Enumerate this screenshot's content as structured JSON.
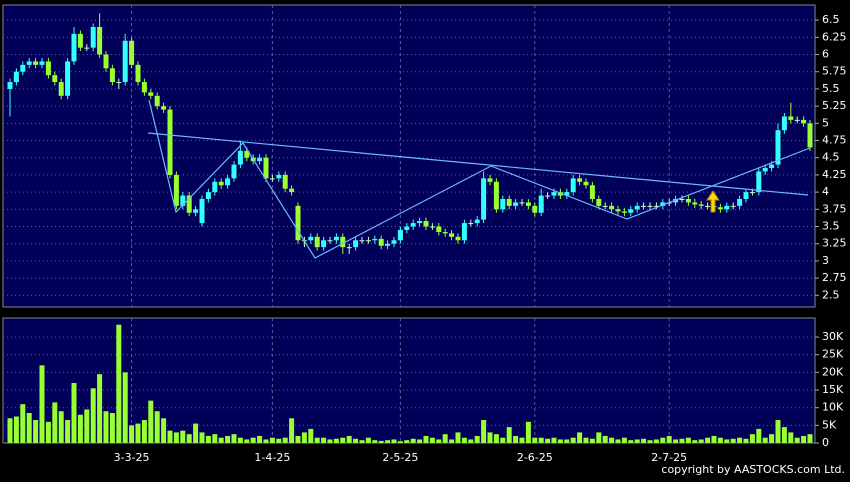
{
  "chart_data": [
    {
      "type": "candlestick",
      "categories": [
        null,
        null,
        null,
        null,
        null,
        null,
        null,
        null,
        null,
        null,
        null,
        null,
        null,
        null,
        null,
        null,
        null,
        null,
        null,
        "3-3-25",
        null,
        null,
        null,
        null,
        null,
        null,
        null,
        null,
        null,
        null,
        null,
        null,
        null,
        null,
        null,
        null,
        null,
        null,
        null,
        null,
        null,
        "1-4-25",
        null,
        null,
        null,
        null,
        null,
        null,
        null,
        null,
        null,
        null,
        null,
        null,
        null,
        null,
        null,
        null,
        null,
        null,
        null,
        "2-5-25",
        null,
        null,
        null,
        null,
        null,
        null,
        null,
        null,
        null,
        null,
        null,
        null,
        null,
        null,
        null,
        null,
        null,
        null,
        null,
        null,
        "2-6-25",
        null,
        null,
        null,
        null,
        null,
        null,
        null,
        null,
        null,
        null,
        null,
        null,
        null,
        null,
        null,
        null,
        null,
        null,
        null,
        null,
        "2-7-25",
        null,
        null,
        null,
        null,
        null,
        null,
        null,
        null,
        null,
        null,
        null,
        null,
        null,
        null,
        null,
        null,
        null,
        null,
        null,
        null,
        null,
        null
      ],
      "open": [
        5.5,
        5.6,
        5.75,
        5.85,
        5.9,
        5.85,
        5.9,
        5.7,
        5.6,
        5.4,
        5.9,
        6.3,
        6.1,
        6.1,
        6.4,
        6.0,
        5.8,
        5.6,
        5.6,
        6.2,
        5.85,
        5.6,
        5.45,
        5.4,
        5.25,
        5.2,
        4.25,
        3.8,
        3.95,
        3.7,
        3.55,
        3.9,
        4.0,
        4.15,
        4.1,
        4.2,
        4.4,
        4.6,
        4.5,
        4.45,
        4.5,
        4.2,
        4.2,
        4.25,
        4.05,
        3.8,
        3.3,
        3.3,
        3.35,
        3.2,
        3.3,
        3.3,
        3.35,
        3.2,
        3.2,
        3.3,
        3.3,
        3.3,
        3.32,
        3.22,
        3.25,
        3.3,
        3.45,
        3.5,
        3.55,
        3.58,
        3.5,
        3.5,
        3.42,
        3.4,
        3.35,
        3.3,
        3.55,
        3.55,
        3.6,
        4.2,
        4.15,
        3.75,
        3.9,
        3.8,
        3.85,
        3.85,
        3.8,
        3.7,
        3.95,
        3.95,
        4.0,
        3.95,
        4.0,
        4.2,
        4.15,
        4.1,
        3.9,
        3.8,
        3.8,
        3.75,
        3.72,
        3.7,
        3.75,
        3.8,
        3.8,
        3.8,
        3.8,
        3.85,
        3.85,
        3.9,
        3.9,
        3.85,
        3.82,
        3.8,
        3.8,
        3.78,
        3.75,
        3.8,
        3.8,
        3.9,
        4.0,
        4.0,
        4.3,
        4.35,
        4.4,
        4.9,
        5.1,
        5.05,
        5.05,
        5.0
      ],
      "high": [
        5.65,
        5.8,
        5.9,
        5.95,
        5.95,
        5.95,
        5.95,
        5.75,
        5.65,
        5.95,
        6.4,
        6.35,
        6.15,
        6.45,
        6.6,
        6.05,
        5.85,
        5.65,
        6.3,
        6.25,
        5.9,
        5.65,
        5.5,
        5.45,
        5.3,
        5.25,
        4.3,
        4.0,
        4.0,
        3.8,
        3.95,
        4.05,
        4.2,
        4.2,
        4.25,
        4.45,
        4.75,
        4.65,
        4.55,
        4.55,
        4.55,
        4.25,
        4.3,
        4.3,
        4.1,
        3.85,
        3.35,
        3.4,
        3.4,
        3.35,
        3.35,
        3.4,
        3.4,
        3.25,
        3.35,
        3.35,
        3.35,
        3.37,
        3.37,
        3.3,
        3.35,
        3.5,
        3.55,
        3.6,
        3.63,
        3.63,
        3.55,
        3.55,
        3.47,
        3.45,
        3.4,
        3.6,
        3.6,
        3.65,
        4.3,
        4.25,
        4.2,
        3.95,
        3.95,
        3.9,
        3.9,
        3.9,
        3.85,
        4.05,
        4.0,
        4.05,
        4.05,
        4.05,
        4.25,
        4.25,
        4.2,
        4.15,
        3.95,
        3.85,
        3.85,
        3.8,
        3.77,
        3.8,
        3.85,
        3.85,
        3.85,
        3.85,
        3.9,
        3.9,
        3.95,
        3.95,
        3.95,
        3.9,
        3.87,
        3.85,
        3.85,
        3.83,
        3.85,
        3.85,
        3.95,
        4.05,
        4.05,
        4.35,
        4.4,
        4.45,
        5.0,
        5.15,
        5.3,
        5.1,
        5.1,
        5.05
      ],
      "low": [
        5.1,
        5.55,
        5.7,
        5.8,
        5.8,
        5.8,
        5.65,
        5.55,
        5.35,
        5.35,
        5.85,
        6.05,
        6.05,
        6.05,
        5.95,
        5.75,
        5.55,
        5.5,
        5.55,
        5.8,
        5.55,
        5.4,
        5.35,
        5.2,
        5.15,
        4.2,
        3.75,
        3.75,
        3.65,
        3.65,
        3.5,
        3.85,
        3.95,
        4.05,
        4.05,
        4.15,
        4.35,
        4.45,
        4.4,
        4.4,
        4.15,
        4.15,
        4.15,
        4.0,
        3.95,
        3.25,
        3.2,
        3.25,
        3.15,
        3.15,
        3.25,
        3.25,
        3.1,
        3.1,
        3.15,
        3.25,
        3.25,
        3.25,
        3.17,
        3.17,
        3.2,
        3.25,
        3.4,
        3.45,
        3.5,
        3.45,
        3.45,
        3.37,
        3.35,
        3.3,
        3.25,
        3.25,
        3.5,
        3.5,
        3.55,
        4.1,
        3.7,
        3.7,
        3.75,
        3.75,
        3.8,
        3.75,
        3.65,
        3.65,
        3.9,
        3.9,
        3.9,
        3.9,
        3.95,
        4.1,
        4.05,
        3.85,
        3.75,
        3.75,
        3.7,
        3.67,
        3.65,
        3.65,
        3.7,
        3.75,
        3.75,
        3.75,
        3.75,
        3.8,
        3.8,
        3.85,
        3.8,
        3.77,
        3.75,
        3.75,
        3.73,
        3.7,
        3.7,
        3.75,
        3.75,
        3.85,
        3.95,
        3.95,
        4.25,
        4.3,
        4.35,
        4.85,
        5.0,
        5.0,
        4.95,
        4.6
      ],
      "close": [
        5.6,
        5.75,
        5.85,
        5.9,
        5.85,
        5.9,
        5.7,
        5.6,
        5.4,
        5.9,
        6.3,
        6.1,
        6.1,
        6.4,
        6.0,
        5.8,
        5.6,
        5.6,
        6.2,
        5.85,
        5.6,
        5.45,
        5.4,
        5.25,
        5.2,
        4.25,
        3.8,
        3.95,
        3.7,
        3.75,
        3.9,
        4.0,
        4.15,
        4.1,
        4.2,
        4.4,
        4.6,
        4.5,
        4.45,
        4.5,
        4.2,
        4.2,
        4.25,
        4.05,
        4.0,
        3.3,
        3.3,
        3.35,
        3.2,
        3.3,
        3.3,
        3.35,
        3.2,
        3.2,
        3.3,
        3.3,
        3.3,
        3.32,
        3.22,
        3.25,
        3.3,
        3.45,
        3.5,
        3.55,
        3.58,
        3.5,
        3.5,
        3.42,
        3.4,
        3.35,
        3.3,
        3.55,
        3.55,
        3.6,
        4.2,
        4.15,
        3.75,
        3.9,
        3.8,
        3.85,
        3.85,
        3.8,
        3.7,
        3.95,
        3.95,
        4.0,
        3.95,
        4.0,
        4.2,
        4.15,
        4.1,
        3.9,
        3.8,
        3.8,
        3.75,
        3.72,
        3.7,
        3.75,
        3.8,
        3.8,
        3.8,
        3.8,
        3.85,
        3.85,
        3.9,
        3.9,
        3.85,
        3.82,
        3.8,
        3.8,
        3.78,
        3.75,
        3.8,
        3.8,
        3.9,
        4.0,
        4.0,
        4.3,
        4.35,
        4.4,
        4.9,
        5.1,
        5.05,
        5.05,
        5.0,
        4.65
      ],
      "up_color": "#33ffff",
      "down_color": "#99ff33",
      "flat_color": "#ccffcc",
      "ylim": [
        2.33,
        6.72
      ],
      "yticks": [
        2.5,
        2.75,
        3,
        3.25,
        3.5,
        3.75,
        4,
        4.25,
        4.5,
        4.75,
        5,
        5.25,
        5.5,
        5.75,
        6,
        6.25,
        6.5
      ],
      "grid": true
    },
    {
      "type": "bar",
      "values": [
        7000,
        7500,
        11000,
        8500,
        6500,
        22000,
        6000,
        11500,
        9000,
        6500,
        17000,
        8000,
        9500,
        15500,
        19500,
        9000,
        8500,
        33500,
        20000,
        5000,
        5500,
        6500,
        12000,
        9000,
        7000,
        3500,
        3000,
        3500,
        2500,
        5500,
        3000,
        2000,
        2500,
        1500,
        2000,
        2500,
        1500,
        1000,
        1500,
        2000,
        1000,
        1500,
        1200,
        1500,
        7000,
        2000,
        3000,
        4000,
        1500,
        1500,
        1000,
        1200,
        1500,
        2000,
        1200,
        800,
        1500,
        800,
        600,
        800,
        1000,
        500,
        800,
        1200,
        1000,
        2000,
        1500,
        1000,
        2500,
        1000,
        3000,
        1500,
        1000,
        2000,
        6500,
        3000,
        2500,
        1500,
        4500,
        2000,
        1500,
        6000,
        1500,
        1500,
        1200,
        1500,
        1000,
        1000,
        1500,
        3000,
        1500,
        1200,
        3000,
        2000,
        1500,
        1000,
        1500,
        800,
        1000,
        1200,
        800,
        1000,
        1500,
        2000,
        1000,
        1200,
        1500,
        800,
        1000,
        1500,
        2000,
        1500,
        1000,
        1200,
        1500,
        1200,
        2500,
        4000,
        1500,
        2500,
        6500,
        4500,
        3000,
        1500,
        2000,
        2500
      ],
      "color": "#99ff33",
      "ylim": [
        0,
        35400
      ],
      "yticks": [
        0,
        {
          "value": 5000,
          "label": "5K"
        },
        {
          "value": 10000,
          "label": "10K"
        },
        {
          "value": 15000,
          "label": "15K"
        },
        {
          "value": 20000,
          "label": "20K"
        },
        {
          "value": 25000,
          "label": "25K"
        },
        {
          "value": 30000,
          "label": "30K"
        }
      ],
      "grid": true
    }
  ],
  "footer": "copyright by AASTOCKS.com Ltd."
}
